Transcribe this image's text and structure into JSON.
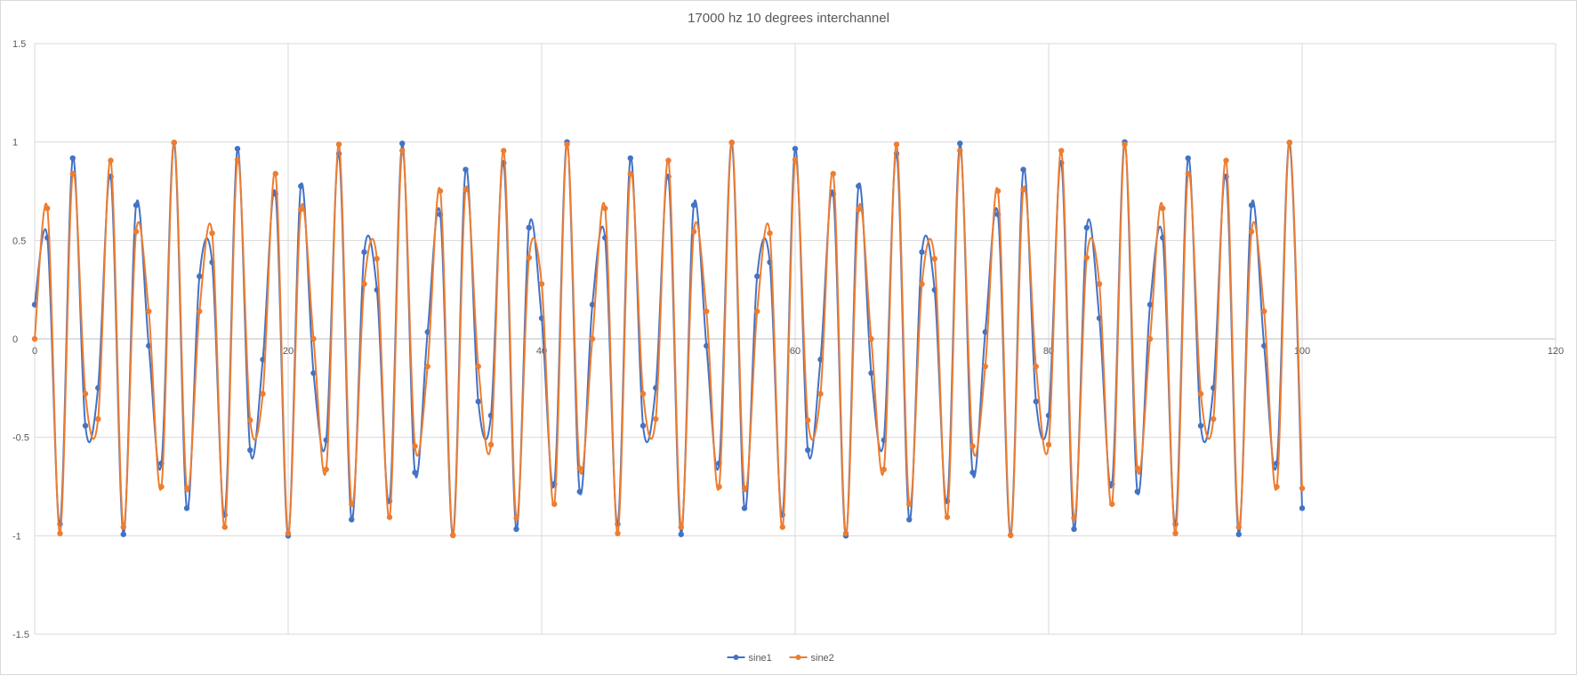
{
  "chart_data": {
    "type": "scatter",
    "title": "17000 hz 10 degrees interchannel",
    "xlabel": "",
    "ylabel": "",
    "xlim": [
      0,
      120
    ],
    "ylim": [
      -1.5,
      1.5
    ],
    "xticks": [
      0,
      20,
      40,
      60,
      80,
      100,
      120
    ],
    "yticks": [
      -1.5,
      -1,
      -0.5,
      0,
      0.5,
      1,
      1.5
    ],
    "xtick_labels": [
      "0",
      "20",
      "40",
      "60",
      "80",
      "100",
      "120"
    ],
    "ytick_labels": [
      "-1.5",
      "-1",
      "-0.5",
      "0",
      "0.5",
      "1",
      "1.5"
    ],
    "grid": true,
    "smooth_lines": true,
    "legend_position": "bottom",
    "x": [
      0,
      1,
      2,
      3,
      4,
      5,
      6,
      7,
      8,
      9,
      10,
      11,
      12,
      13,
      14,
      15,
      16,
      17,
      18,
      19,
      20,
      21,
      22,
      23,
      24,
      25,
      26,
      27,
      28,
      29,
      30,
      31,
      32,
      33,
      34,
      35,
      36,
      37,
      38,
      39,
      40,
      41,
      42,
      43,
      44,
      45,
      46,
      47,
      48,
      49,
      50,
      51,
      52,
      53,
      54,
      55,
      56,
      57,
      58,
      59,
      60,
      61,
      62,
      63,
      64,
      65,
      66,
      67,
      68,
      69,
      70,
      71,
      72,
      73,
      74,
      75,
      76,
      77,
      78,
      79,
      80,
      81,
      82,
      83,
      84,
      85,
      86,
      87,
      88,
      89,
      90,
      91,
      92,
      93,
      94,
      95,
      96,
      97,
      98,
      99,
      100
    ],
    "series": [
      {
        "name": "sine1",
        "color": "#4472c4",
        "values": [
          0.174,
          0.514,
          -0.941,
          0.918,
          -0.441,
          -0.249,
          0.824,
          -0.993,
          0.679,
          -0.035,
          -0.632,
          0.997,
          -0.86,
          0.318,
          0.389,
          -0.894,
          0.966,
          -0.565,
          -0.105,
          0.737,
          -1.0,
          0.776,
          -0.174,
          -0.514,
          0.941,
          -0.918,
          0.441,
          0.249,
          -0.824,
          0.993,
          -0.679,
          0.035,
          0.632,
          -0.997,
          0.86,
          -0.318,
          -0.389,
          0.894,
          -0.966,
          0.565,
          0.105,
          -0.737,
          1.0,
          -0.776,
          0.174,
          0.514,
          -0.941,
          0.918,
          -0.441,
          -0.249,
          0.824,
          -0.993,
          0.679,
          -0.035,
          -0.632,
          0.997,
          -0.86,
          0.318,
          0.389,
          -0.894,
          0.966,
          -0.565,
          -0.105,
          0.737,
          -1.0,
          0.776,
          -0.174,
          -0.514,
          0.941,
          -0.918,
          0.441,
          0.249,
          -0.824,
          0.993,
          -0.679,
          0.035,
          0.632,
          -0.997,
          0.86,
          -0.318,
          -0.389,
          0.894,
          -0.966,
          0.565,
          0.105,
          -0.737,
          1.0,
          -0.776,
          0.174,
          0.514,
          -0.941,
          0.918,
          -0.441,
          -0.249,
          0.824,
          -0.993,
          0.679,
          -0.035,
          -0.632,
          0.997,
          -0.86
        ]
      },
      {
        "name": "sine2",
        "color": "#ed7d31",
        "values": [
          0.0,
          0.663,
          -0.988,
          0.839,
          -0.279,
          -0.407,
          0.906,
          -0.956,
          0.545,
          0.14,
          -0.751,
          0.998,
          -0.759,
          0.14,
          0.537,
          -0.956,
          0.91,
          -0.413,
          -0.279,
          0.839,
          -0.988,
          0.658,
          0.0,
          -0.663,
          0.988,
          -0.839,
          0.279,
          0.407,
          -0.906,
          0.956,
          -0.545,
          -0.14,
          0.751,
          -0.998,
          0.759,
          -0.14,
          -0.537,
          0.956,
          -0.91,
          0.413,
          0.279,
          -0.839,
          0.988,
          -0.658,
          0.0,
          0.663,
          -0.988,
          0.839,
          -0.279,
          -0.407,
          0.906,
          -0.956,
          0.545,
          0.14,
          -0.751,
          0.998,
          -0.759,
          0.14,
          0.537,
          -0.956,
          0.91,
          -0.413,
          -0.279,
          0.839,
          -0.988,
          0.658,
          0.0,
          -0.663,
          0.988,
          -0.839,
          0.279,
          0.407,
          -0.906,
          0.956,
          -0.545,
          -0.14,
          0.751,
          -0.998,
          0.759,
          -0.14,
          -0.537,
          0.956,
          -0.91,
          0.413,
          0.279,
          -0.839,
          0.988,
          -0.658,
          0.0,
          0.663,
          -0.988,
          0.839,
          -0.279,
          -0.407,
          0.906,
          -0.956,
          0.545,
          0.14,
          -0.751,
          0.998,
          -0.759
        ]
      }
    ]
  }
}
